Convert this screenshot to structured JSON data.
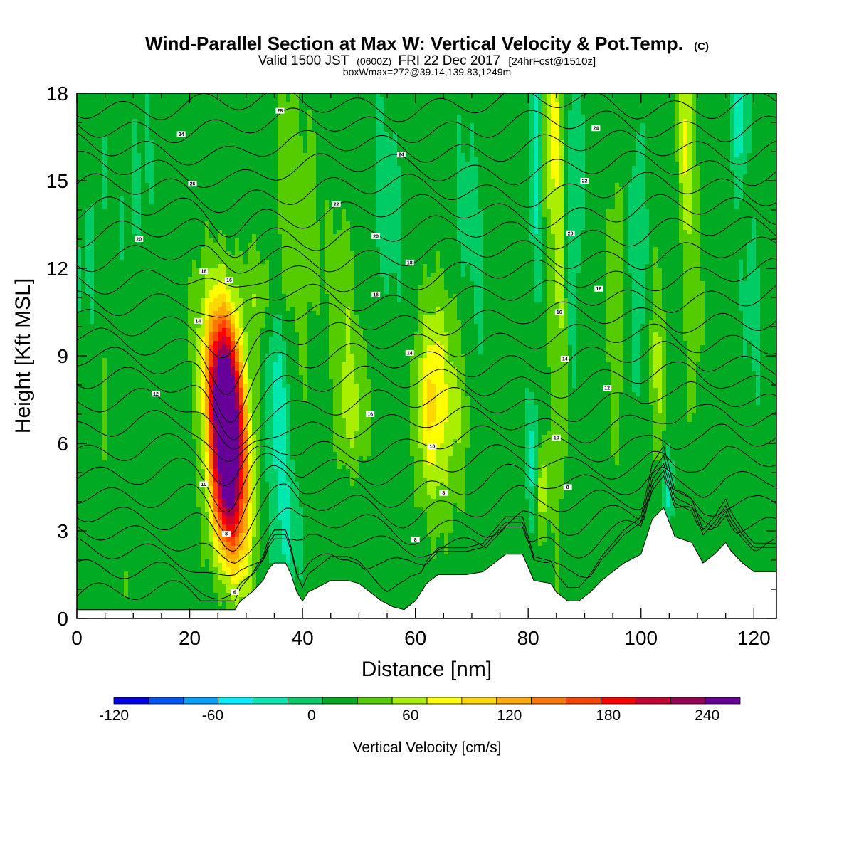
{
  "title": {
    "main": "Wind-Parallel Section at Max W: Vertical Velocity & Pot.Temp.",
    "main_mark": "(C)",
    "sub_a": "Valid 1500 JST",
    "sub_b": "(0600Z)",
    "sub_c": "FRI 22 Dec 2017",
    "sub_d": "[24hrFcst@1510z]",
    "line3": "boxWmax=272@39.14,139.83,1249m"
  },
  "chart_data": {
    "type": "heatmap",
    "xlabel": "Distance [nm]",
    "ylabel": "Height [Kft MSL]",
    "xlim": [
      0,
      124
    ],
    "ylim": [
      0,
      18
    ],
    "x_ticks": [
      0,
      20,
      40,
      60,
      80,
      100,
      120
    ],
    "y_ticks": [
      0,
      3,
      6,
      9,
      12,
      15,
      18
    ],
    "x_tick_labels": [
      "0",
      "20",
      "40",
      "60",
      "80",
      "100",
      "120"
    ],
    "y_tick_labels": [
      "0",
      "3",
      "6",
      "9",
      "12",
      "15",
      "18"
    ],
    "colorbar": {
      "title": "Vertical Velocity [cm/s]",
      "bounds": [
        -120,
        260
      ],
      "step": 20,
      "labels": [
        "-120",
        "-60",
        "0",
        "60",
        "120",
        "180",
        "240"
      ],
      "label_values": [
        -120,
        -60,
        0,
        60,
        120,
        180,
        240
      ],
      "colors": [
        "#0000ee",
        "#0055ff",
        "#00a0ff",
        "#00f0ff",
        "#00e8b0",
        "#00cc66",
        "#00aa22",
        "#55cc00",
        "#aaee00",
        "#ffff00",
        "#ffd800",
        "#ffaa00",
        "#ff7700",
        "#ff4400",
        "#ff0000",
        "#cc0030",
        "#990055",
        "#660099"
      ]
    },
    "terrain_kft": [
      [
        0,
        0.3
      ],
      [
        9,
        0.3
      ],
      [
        19,
        0.3
      ],
      [
        23,
        0.3
      ],
      [
        28,
        0.3
      ],
      [
        29,
        0.6
      ],
      [
        31,
        0.9
      ],
      [
        33,
        1.3
      ],
      [
        34,
        1.7
      ],
      [
        35,
        1.9
      ],
      [
        37,
        1.9
      ],
      [
        38,
        1.5
      ],
      [
        39,
        0.9
      ],
      [
        40,
        0.6
      ],
      [
        41,
        0.9
      ],
      [
        43,
        1.1
      ],
      [
        45,
        1.3
      ],
      [
        48,
        1.3
      ],
      [
        50,
        1.2
      ],
      [
        52,
        0.9
      ],
      [
        54,
        0.6
      ],
      [
        56,
        0.4
      ],
      [
        58,
        0.3
      ],
      [
        60,
        0.6
      ],
      [
        62,
        1.2
      ],
      [
        64,
        1.5
      ],
      [
        69,
        1.5
      ],
      [
        72,
        1.6
      ],
      [
        74,
        1.9
      ],
      [
        76,
        2.2
      ],
      [
        79,
        2.2
      ],
      [
        81,
        1.3
      ],
      [
        84,
        1.2
      ],
      [
        85,
        0.9
      ],
      [
        87,
        0.6
      ],
      [
        89,
        0.6
      ],
      [
        91,
        0.9
      ],
      [
        93,
        1.3
      ],
      [
        95,
        1.6
      ],
      [
        97,
        1.9
      ],
      [
        100,
        2.2
      ],
      [
        102,
        3.4
      ],
      [
        104,
        3.8
      ],
      [
        106,
        2.8
      ],
      [
        109,
        2.6
      ],
      [
        111,
        1.9
      ],
      [
        113,
        2.2
      ],
      [
        115,
        2.6
      ],
      [
        116,
        2.3
      ],
      [
        118,
        1.9
      ],
      [
        120,
        1.6
      ],
      [
        122,
        1.6
      ],
      [
        124,
        1.6
      ]
    ],
    "w_features": [
      {
        "x": 26.5,
        "y": 6.4,
        "sx": 2.2,
        "sy": 2.6,
        "tilt": -0.45,
        "amp": 262
      },
      {
        "x": 27.5,
        "y": 8.2,
        "sx": 1.8,
        "sy": 1.8,
        "tilt": -0.4,
        "amp": 80
      },
      {
        "x": 26.0,
        "y": 3.6,
        "sx": 1.7,
        "sy": 1.6,
        "tilt": -0.4,
        "amp": 70
      },
      {
        "x": 35.5,
        "y": 7.0,
        "sx": 1.5,
        "sy": 3.5,
        "tilt": -0.2,
        "amp": -42
      },
      {
        "x": 37.5,
        "y": 3.0,
        "sx": 1.2,
        "sy": 1.2,
        "tilt": 0,
        "amp": -25
      },
      {
        "x": 32.0,
        "y": 11.0,
        "sx": 3.0,
        "sy": 1.4,
        "tilt": 0,
        "amp": 28
      },
      {
        "x": 39.0,
        "y": 14.0,
        "sx": 2.5,
        "sy": 3.0,
        "tilt": 0,
        "amp": 25
      },
      {
        "x": 49.0,
        "y": 7.2,
        "sx": 2.0,
        "sy": 1.4,
        "tilt": 0,
        "amp": 40
      },
      {
        "x": 47.0,
        "y": 11.0,
        "sx": 2.5,
        "sy": 2.0,
        "tilt": 0,
        "amp": 24
      },
      {
        "x": 62.5,
        "y": 7.2,
        "sx": 1.6,
        "sy": 2.2,
        "tilt": 0,
        "amp": 52
      },
      {
        "x": 66.0,
        "y": 6.6,
        "sx": 2.6,
        "sy": 2.2,
        "tilt": 0,
        "amp": 30
      },
      {
        "x": 64.5,
        "y": 9.0,
        "sx": 1.5,
        "sy": 2.0,
        "tilt": 0,
        "amp": 28
      },
      {
        "x": 55.0,
        "y": 14.0,
        "sx": 2.0,
        "sy": 2.0,
        "tilt": 0,
        "amp": -25
      },
      {
        "x": 70.0,
        "y": 13.5,
        "sx": 2.0,
        "sy": 2.5,
        "tilt": 0,
        "amp": -18
      },
      {
        "x": 81.0,
        "y": 5.5,
        "sx": 0.9,
        "sy": 1.4,
        "tilt": 0,
        "amp": -40
      },
      {
        "x": 82.5,
        "y": 4.5,
        "sx": 0.8,
        "sy": 1.2,
        "tilt": 0,
        "amp": 50
      },
      {
        "x": 84.0,
        "y": 17.0,
        "sx": 1.0,
        "sy": 2.5,
        "tilt": 0,
        "amp": 55
      },
      {
        "x": 85.5,
        "y": 11.0,
        "sx": 1.0,
        "sy": 5.0,
        "tilt": 0,
        "amp": 38
      },
      {
        "x": 81.5,
        "y": 15.5,
        "sx": 0.8,
        "sy": 3.5,
        "tilt": 0,
        "amp": -35
      },
      {
        "x": 88.0,
        "y": 13.5,
        "sx": 1.0,
        "sy": 4.0,
        "tilt": 0,
        "amp": -28
      },
      {
        "x": 95.5,
        "y": 11.0,
        "sx": 1.0,
        "sy": 3.5,
        "tilt": 0,
        "amp": 24
      },
      {
        "x": 99.5,
        "y": 13.5,
        "sx": 1.0,
        "sy": 3.0,
        "tilt": 0,
        "amp": -26
      },
      {
        "x": 103.0,
        "y": 8.5,
        "sx": 1.0,
        "sy": 2.5,
        "tilt": 0,
        "amp": 28
      },
      {
        "x": 104.5,
        "y": 4.5,
        "sx": 0.8,
        "sy": 0.9,
        "tilt": 0,
        "amp": -40
      },
      {
        "x": 108.0,
        "y": 16.5,
        "sx": 0.9,
        "sy": 2.0,
        "tilt": 0,
        "amp": 50
      },
      {
        "x": 109.0,
        "y": 12.0,
        "sx": 1.0,
        "sy": 3.0,
        "tilt": 0,
        "amp": 26
      },
      {
        "x": 117.5,
        "y": 17.3,
        "sx": 1.0,
        "sy": 1.4,
        "tilt": 0,
        "amp": -45
      },
      {
        "x": 119.0,
        "y": 11.0,
        "sx": 1.5,
        "sy": 2.5,
        "tilt": 0,
        "amp": -14
      },
      {
        "x": 7.0,
        "y": 6.0,
        "sx": 4.0,
        "sy": 3.0,
        "tilt": 0,
        "amp": 6
      },
      {
        "x": 10.0,
        "y": 15.0,
        "sx": 3.0,
        "sy": 3.0,
        "tilt": 0,
        "amp": -10
      },
      {
        "x": 2.0,
        "y": 12.5,
        "sx": 2.0,
        "sy": 2.0,
        "tilt": 0,
        "amp": -12
      }
    ],
    "contour_labels": [
      {
        "x": 36.0,
        "y": 17.4,
        "text": "28"
      },
      {
        "x": 18.5,
        "y": 16.6,
        "text": "24"
      },
      {
        "x": 57.5,
        "y": 15.9,
        "text": "24"
      },
      {
        "x": 92.0,
        "y": 16.8,
        "text": "24"
      },
      {
        "x": 20.5,
        "y": 14.9,
        "text": "26"
      },
      {
        "x": 46.0,
        "y": 14.2,
        "text": "22"
      },
      {
        "x": 90.0,
        "y": 15.0,
        "text": "22"
      },
      {
        "x": 11.0,
        "y": 13.0,
        "text": "20"
      },
      {
        "x": 53.0,
        "y": 13.1,
        "text": "20"
      },
      {
        "x": 87.5,
        "y": 13.2,
        "text": "20"
      },
      {
        "x": 22.5,
        "y": 11.9,
        "text": "18"
      },
      {
        "x": 59.0,
        "y": 12.2,
        "text": "18"
      },
      {
        "x": 92.5,
        "y": 11.3,
        "text": "16"
      },
      {
        "x": 27.0,
        "y": 11.6,
        "text": "16"
      },
      {
        "x": 53.0,
        "y": 11.1,
        "text": "16"
      },
      {
        "x": 85.5,
        "y": 10.5,
        "text": "16"
      },
      {
        "x": 21.5,
        "y": 10.2,
        "text": "14"
      },
      {
        "x": 59.0,
        "y": 9.1,
        "text": "14"
      },
      {
        "x": 86.5,
        "y": 8.9,
        "text": "14"
      },
      {
        "x": 14.0,
        "y": 7.7,
        "text": "12"
      },
      {
        "x": 94.0,
        "y": 7.9,
        "text": "12"
      },
      {
        "x": 52.0,
        "y": 7.0,
        "text": "16"
      },
      {
        "x": 85.0,
        "y": 6.2,
        "text": "10"
      },
      {
        "x": 63.0,
        "y": 5.9,
        "text": "10"
      },
      {
        "x": 22.5,
        "y": 4.6,
        "text": "10"
      },
      {
        "x": 65.0,
        "y": 4.3,
        "text": "8"
      },
      {
        "x": 87.0,
        "y": 4.5,
        "text": "8"
      },
      {
        "x": 26.5,
        "y": 2.9,
        "text": "8"
      },
      {
        "x": 60.0,
        "y": 2.7,
        "text": "8"
      },
      {
        "x": 28.0,
        "y": 0.9,
        "text": "6"
      }
    ]
  }
}
